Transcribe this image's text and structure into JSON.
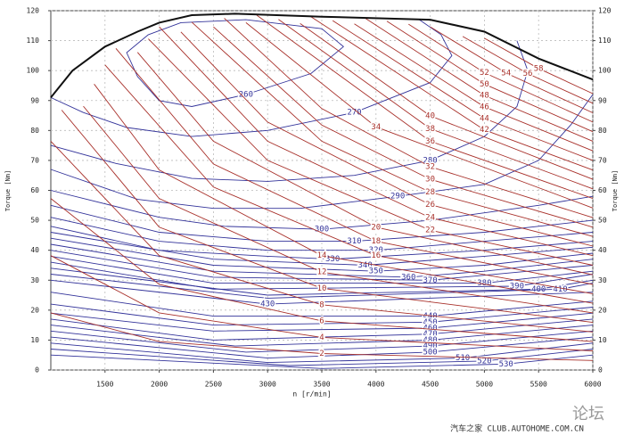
{
  "chart_data": {
    "type": "contour",
    "xlabel": "n [r/min]",
    "ylabel": "Torque [Nm]",
    "xlim": [
      1000,
      6000
    ],
    "ylim": [
      0,
      120
    ],
    "xticks": [
      1500,
      2000,
      2500,
      3000,
      3500,
      4000,
      4500,
      5000,
      5500,
      6000
    ],
    "yticks": [
      0,
      10,
      20,
      30,
      40,
      50,
      60,
      70,
      80,
      90,
      100,
      110,
      120
    ],
    "grid": true,
    "full_load": {
      "color": "#111111",
      "x": [
        1000,
        1200,
        1500,
        1800,
        2000,
        2300,
        2700,
        3500,
        4500,
        5000,
        5500,
        6000
      ],
      "y": [
        91,
        100,
        108,
        113,
        116,
        118.5,
        119,
        118,
        117,
        113,
        104,
        97
      ]
    },
    "contour_sets": [
      {
        "color": "#33339a",
        "lines": [
          {
            "level": 260,
            "x": [
              1900,
              2200,
              2800,
              3500,
              3700,
              3400,
              2800,
              2300,
              2000,
              1800,
              1700,
              1900
            ],
            "y": [
              112,
              116,
              117,
              114,
              108,
              99,
              92,
              88,
              90,
              98,
              106,
              112
            ]
          },
          {
            "level": 270,
            "x": [
              1000,
              1300,
              1700,
              2300,
              3000,
              3800,
              4500,
              4700,
              4600,
              4400
            ],
            "y": [
              91,
              86,
              81,
              78,
              80,
              86,
              96,
              105,
              112,
              117
            ]
          },
          {
            "level": 280,
            "x": [
              1000,
              1600,
              2300,
              3000,
              3800,
              4500,
              5000,
              5300,
              5400,
              5300
            ],
            "y": [
              75,
              69,
              64,
              63,
              65,
              70,
              78,
              88,
              100,
              110
            ]
          },
          {
            "level": 290,
            "x": [
              1000,
              1800,
              2500,
              3300,
              4200,
              5000,
              5500,
              5800,
              6000
            ],
            "y": [
              67,
              57,
              54,
              54,
              58,
              62,
              70,
              82,
              92
            ]
          },
          {
            "level": 300,
            "x": [
              1000,
              2000,
              2600,
              3500,
              4500,
              5500,
              6000
            ],
            "y": [
              60,
              51,
              48,
              47,
              50,
              55,
              58
            ]
          },
          {
            "level": 310,
            "x": [
              1000,
              2000,
              3000,
              3800,
              5000,
              6000
            ],
            "y": [
              55,
              46,
              43,
              43,
              46,
              50
            ]
          },
          {
            "level": 320,
            "x": [
              1000,
              2000,
              3000,
              4000,
              5000,
              6000
            ],
            "y": [
              51,
              43,
              40,
              40,
              43,
              46
            ]
          },
          {
            "level": 330,
            "x": [
              1000,
              2000,
              3000,
              3600,
              5000,
              6000
            ],
            "y": [
              48,
              40,
              38,
              37,
              40,
              43
            ]
          },
          {
            "level": 340,
            "x": [
              1000,
              2500,
              3900,
              5000,
              6000
            ],
            "y": [
              46,
              37,
              35,
              38,
              41
            ]
          },
          {
            "level": 350,
            "x": [
              1000,
              2500,
              4000,
              5000,
              6000
            ],
            "y": [
              44,
              35,
              33,
              35,
              39
            ]
          },
          {
            "level": 360,
            "x": [
              1000,
              2500,
              4300,
              5000,
              6000
            ],
            "y": [
              42,
              33,
              31,
              33,
              37
            ]
          },
          {
            "level": 370,
            "x": [
              1000,
              2500,
              4500,
              6000
            ],
            "y": [
              40,
              31,
              30,
              35
            ]
          },
          {
            "level": 380,
            "x": [
              1000,
              2500,
              5000,
              6000
            ],
            "y": [
              38,
              29,
              29,
              33
            ]
          },
          {
            "level": 390,
            "x": [
              1000,
              2500,
              5300,
              6000
            ],
            "y": [
              36,
              27,
              28,
              32
            ]
          },
          {
            "level": 400,
            "x": [
              1000,
              3000,
              5500,
              6000
            ],
            "y": [
              34,
              25,
              27,
              30
            ]
          },
          {
            "level": 410,
            "x": [
              1000,
              3000,
              5700,
              6000
            ],
            "y": [
              32,
              24,
              27,
              29
            ]
          },
          {
            "level": 430,
            "x": [
              1000,
              3000,
              6000
            ],
            "y": [
              30,
              22,
              26
            ]
          },
          {
            "level": 440,
            "x": [
              1000,
              2500,
              4500,
              6000
            ],
            "y": [
              26,
              18,
              18,
              23
            ]
          },
          {
            "level": 450,
            "x": [
              1000,
              2500,
              4500,
              6000
            ],
            "y": [
              22,
              15,
              16,
              21
            ]
          },
          {
            "level": 460,
            "x": [
              1000,
              2500,
              4500,
              6000
            ],
            "y": [
              19,
              13,
              14,
              19
            ]
          },
          {
            "level": 470,
            "x": [
              1000,
              2500,
              4500,
              6000
            ],
            "y": [
              17,
              10,
              12,
              17
            ]
          },
          {
            "level": 480,
            "x": [
              1000,
              2700,
              4500,
              6000
            ],
            "y": [
              15,
              8,
              10,
              15
            ]
          },
          {
            "level": 490,
            "x": [
              1000,
              2800,
              4500,
              6000
            ],
            "y": [
              13,
              6,
              8,
              13
            ]
          },
          {
            "level": 500,
            "x": [
              1000,
              3000,
              4500,
              6000
            ],
            "y": [
              11,
              4,
              6,
              11
            ]
          },
          {
            "level": 510,
            "x": [
              1000,
              3000,
              4800,
              6000
            ],
            "y": [
              9,
              2.5,
              4,
              9
            ]
          },
          {
            "level": 520,
            "x": [
              1000,
              3200,
              5000,
              6000
            ],
            "y": [
              7,
              1.5,
              3,
              7
            ]
          },
          {
            "level": 530,
            "x": [
              1000,
              3500,
              5200,
              6000
            ],
            "y": [
              5,
              0.5,
              2,
              5
            ]
          }
        ]
      },
      {
        "color": "#a8302a",
        "lines": [
          {
            "level": 2,
            "x": [
              1000,
              2000,
              3500,
              6000
            ],
            "y": [
              19.1,
              9.5,
              5.5,
              3.2
            ]
          },
          {
            "level": 4,
            "x": [
              1000,
              2000,
              3500,
              6000
            ],
            "y": [
              38.2,
              19.1,
              10.9,
              6.4
            ]
          },
          {
            "level": 6,
            "x": [
              1000,
              2000,
              3500,
              6000
            ],
            "y": [
              57.3,
              28.6,
              16.4,
              9.5
            ]
          },
          {
            "level": 8,
            "x": [
              1000,
              2000,
              3500,
              6000
            ],
            "y": [
              76.4,
              38.2,
              21.8,
              12.7
            ]
          },
          {
            "level": 10,
            "x": [
              1100,
              2000,
              3500,
              6000
            ],
            "y": [
              86.8,
              47.7,
              27.3,
              15.9
            ]
          },
          {
            "level": 12,
            "x": [
              1300,
              2000,
              3500,
              6000
            ],
            "y": [
              88.1,
              57.3,
              32.7,
              19.1
            ]
          },
          {
            "level": 14,
            "x": [
              1400,
              2000,
              3500,
              6000
            ],
            "y": [
              95.5,
              66.8,
              38.2,
              22.3
            ]
          },
          {
            "level": 16,
            "x": [
              1500,
              2500,
              4000,
              6000
            ],
            "y": [
              101.9,
              61.1,
              38.2,
              25.5
            ]
          },
          {
            "level": 18,
            "x": [
              1600,
              2500,
              4000,
              6000
            ],
            "y": [
              107.4,
              68.8,
              43.0,
              28.6
            ]
          },
          {
            "level": 20,
            "x": [
              1800,
              2500,
              4000,
              6000
            ],
            "y": [
              106.1,
              76.4,
              47.7,
              31.8
            ]
          },
          {
            "level": 22,
            "x": [
              1900,
              3000,
              4500,
              6000
            ],
            "y": [
              110.6,
              70.0,
              46.7,
              35.0
            ]
          },
          {
            "level": 24,
            "x": [
              2000,
              3000,
              4500,
              6000
            ],
            "y": [
              114.6,
              76.4,
              50.9,
              38.2
            ]
          },
          {
            "level": 26,
            "x": [
              2200,
              3000,
              4500,
              6000
            ],
            "y": [
              112.9,
              82.8,
              55.2,
              41.4
            ]
          },
          {
            "level": 28,
            "x": [
              2300,
              3500,
              4500,
              6000
            ],
            "y": [
              116.2,
              76.4,
              59.4,
              44.6
            ]
          },
          {
            "level": 30,
            "x": [
              2500,
              3500,
              4500,
              6000
            ],
            "y": [
              114.6,
              81.8,
              63.7,
              47.7
            ]
          },
          {
            "level": 32,
            "x": [
              2600,
              3500,
              4500,
              6000
            ],
            "y": [
              117.5,
              87.3,
              67.9,
              50.9
            ]
          },
          {
            "level": 34,
            "x": [
              2800,
              4000,
              6000
            ],
            "y": [
              116.0,
              81.2,
              54.1
            ]
          },
          {
            "level": 36,
            "x": [
              2900,
              4500,
              6000
            ],
            "y": [
              118.5,
              76.4,
              57.3
            ]
          },
          {
            "level": 38,
            "x": [
              3100,
              4500,
              6000
            ],
            "y": [
              117.1,
              80.6,
              60.5
            ]
          },
          {
            "level": 40,
            "x": [
              3300,
              4500,
              6000
            ],
            "y": [
              115.7,
              84.9,
              63.7
            ]
          },
          {
            "level": 42,
            "x": [
              3400,
              5000,
              6000
            ],
            "y": [
              118.0,
              80.2,
              66.8
            ]
          },
          {
            "level": 44,
            "x": [
              3600,
              5000,
              6000
            ],
            "y": [
              116.7,
              84.0,
              70.0
            ]
          },
          {
            "level": 46,
            "x": [
              3800,
              5000,
              6000
            ],
            "y": [
              115.6,
              87.9,
              73.2
            ]
          },
          {
            "level": 48,
            "x": [
              3900,
              5000,
              6000
            ],
            "y": [
              117.5,
              91.7,
              76.4
            ]
          },
          {
            "level": 50,
            "x": [
              4100,
              5000,
              6000
            ],
            "y": [
              116.5,
              95.5,
              79.6
            ]
          },
          {
            "level": 52,
            "x": [
              4300,
              5000,
              6000
            ],
            "y": [
              115.5,
              99.3,
              82.8
            ]
          },
          {
            "level": 54,
            "x": [
              4500,
              5200,
              6000
            ],
            "y": [
              114.6,
              99.2,
              85.9
            ]
          },
          {
            "level": 56,
            "x": [
              4800,
              5400,
              6000
            ],
            "y": [
              111.4,
              99.0,
              89.1
            ]
          },
          {
            "level": 58,
            "x": [
              5000,
              5500,
              6000
            ],
            "y": [
              110.8,
              100.7,
              92.3
            ]
          }
        ]
      }
    ],
    "watermark": [
      "论坛",
      "汽车之家  CLUB.AUTOHOME.COM.CN"
    ]
  }
}
